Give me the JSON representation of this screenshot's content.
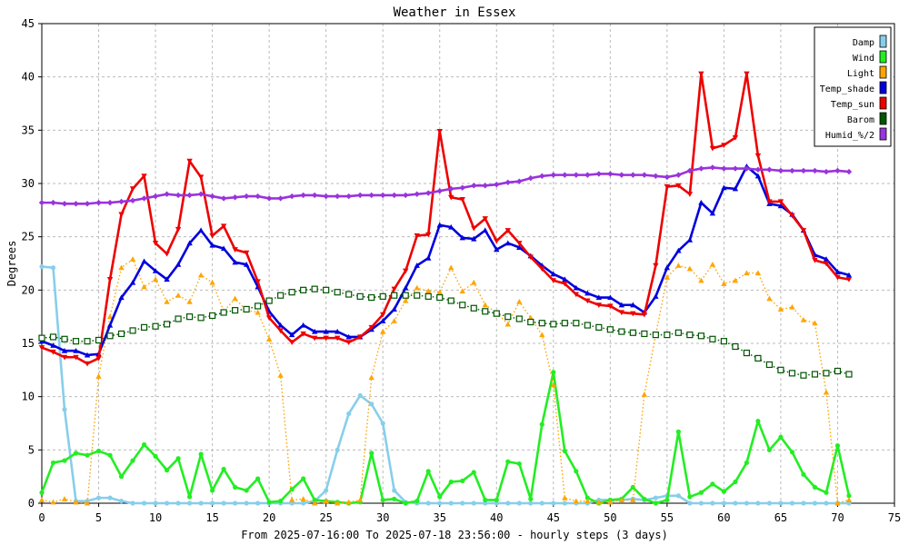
{
  "chart_data": {
    "type": "line",
    "title": "Weather in Essex",
    "xlabel": "From 2025-07-16:00 To 2025-07-18 23:56:00 - hourly steps (3 days)",
    "ylabel": "Degrees",
    "xlim": [
      0,
      75
    ],
    "ylim": [
      0,
      45
    ],
    "xticks": [
      0,
      5,
      10,
      15,
      20,
      25,
      30,
      35,
      40,
      45,
      50,
      55,
      60,
      65,
      70,
      75
    ],
    "yticks": [
      0,
      5,
      10,
      15,
      20,
      25,
      30,
      35,
      40,
      45
    ],
    "grid": true,
    "legend_position": "top-right",
    "x": [
      0,
      1,
      2,
      3,
      4,
      5,
      6,
      7,
      8,
      9,
      10,
      11,
      12,
      13,
      14,
      15,
      16,
      17,
      18,
      19,
      20,
      21,
      22,
      23,
      24,
      25,
      26,
      27,
      28,
      29,
      30,
      31,
      32,
      33,
      34,
      35,
      36,
      37,
      38,
      39,
      40,
      41,
      42,
      43,
      44,
      45,
      46,
      47,
      48,
      49,
      50,
      51,
      52,
      53,
      54,
      55,
      56,
      57,
      58,
      59,
      60,
      61,
      62,
      63,
      64,
      65,
      66,
      67,
      68,
      69,
      70,
      71
    ],
    "series": [
      {
        "name": "Damp",
        "color": "#87ceeb",
        "marker": "circle",
        "style": "solid",
        "values": [
          22.2,
          22.1,
          8.8,
          0.2,
          0.2,
          0.5,
          0.5,
          0.2,
          0,
          0,
          0,
          0,
          0,
          0,
          0,
          0,
          0,
          0,
          0,
          0,
          0,
          0,
          0,
          0,
          0.2,
          1.2,
          5,
          8.4,
          10.1,
          9.3,
          7.5,
          1.2,
          0.1,
          0,
          0,
          0,
          0,
          0,
          0,
          0,
          0,
          0,
          0,
          0,
          0,
          0,
          0,
          0,
          0,
          0.3,
          0.3,
          0.3,
          0.4,
          0.3,
          0.5,
          0.7,
          0.7,
          0,
          0,
          0,
          0,
          0,
          0,
          0,
          0,
          0,
          0,
          0,
          0,
          0,
          0,
          0
        ]
      },
      {
        "name": "Wind",
        "color": "#22ee22",
        "marker": "circle",
        "style": "solid",
        "values": [
          1,
          3.8,
          4,
          4.7,
          4.5,
          4.9,
          4.5,
          2.5,
          4,
          5.5,
          4.4,
          3.1,
          4.2,
          0.6,
          4.6,
          1.2,
          3.2,
          1.5,
          1.2,
          2.3,
          0.1,
          0.2,
          1.3,
          2.3,
          0.3,
          0.2,
          0.1,
          0,
          0.1,
          4.7,
          0.3,
          0.4,
          0,
          0.2,
          3,
          0.6,
          2,
          2.1,
          2.9,
          0.3,
          0.3,
          3.9,
          3.7,
          0.4,
          7.4,
          12.3,
          4.9,
          3,
          0.5,
          0,
          0.3,
          0.4,
          1.5,
          0.4,
          0,
          0.3,
          6.7,
          0.6,
          1,
          1.8,
          1.1,
          2,
          3.8,
          7.7,
          5,
          6.2,
          4.8,
          2.7,
          1.5,
          1,
          5.4,
          0.7
        ]
      },
      {
        "name": "Light",
        "color": "#ffa500",
        "marker": "triangle",
        "style": "dotted",
        "values": [
          0.3,
          0.1,
          0.4,
          0.1,
          0,
          11.9,
          17.5,
          22.1,
          22.9,
          20.3,
          21,
          18.9,
          19.5,
          18.9,
          21.4,
          20.7,
          18,
          19.2,
          18.1,
          17.9,
          15.4,
          12,
          0.3,
          0.4,
          0,
          0.2,
          0,
          0.1,
          0.3,
          11.8,
          16.1,
          17.1,
          19,
          20.2,
          19.9,
          19.8,
          22.1,
          19.9,
          20.7,
          18.6,
          17.9,
          16.8,
          18.9,
          17.4,
          15.8,
          11.1,
          0.5,
          0.2,
          0.2,
          0.1,
          0.1,
          0.3,
          0.3,
          10.2,
          15.8,
          21.2,
          22.3,
          22,
          20.9,
          22.4,
          20.6,
          20.9,
          21.6,
          21.6,
          19.2,
          18.2,
          18.4,
          17.2,
          16.9,
          10.4,
          0,
          0.3
        ]
      },
      {
        "name": "Temp_shade",
        "color": "#0000dd",
        "marker": "up-triangle",
        "style": "solid",
        "values": [
          15.2,
          14.8,
          14.3,
          14.3,
          13.9,
          14,
          16.7,
          19.3,
          20.7,
          22.7,
          21.8,
          21,
          22.4,
          24.4,
          25.6,
          24.2,
          23.9,
          22.6,
          22.4,
          20.3,
          18,
          16.7,
          15.8,
          16.7,
          16.1,
          16.1,
          16.1,
          15.6,
          15.6,
          16.3,
          17.1,
          18.2,
          20.2,
          22.3,
          23,
          26.1,
          25.9,
          24.9,
          24.8,
          25.6,
          23.8,
          24.4,
          24,
          23.2,
          22.3,
          21.5,
          21,
          20.2,
          19.7,
          19.3,
          19.3,
          18.6,
          18.6,
          17.9,
          19.4,
          22.1,
          23.7,
          24.7,
          28.2,
          27.2,
          29.6,
          29.5,
          31.6,
          30.7,
          28.1,
          27.9,
          27.1,
          25.6,
          23.3,
          22.9,
          21.7,
          21.4
        ]
      },
      {
        "name": "Temp_sun",
        "color": "#ee0000",
        "marker": "down-triangle",
        "style": "solid",
        "values": [
          14.6,
          14.2,
          13.7,
          13.7,
          13.1,
          13.6,
          21,
          27.1,
          29.5,
          30.7,
          24.4,
          23.4,
          25.7,
          32.1,
          30.6,
          25.1,
          26,
          23.8,
          23.5,
          20.8,
          17.4,
          16.2,
          15.1,
          15.9,
          15.5,
          15.5,
          15.5,
          15.1,
          15.6,
          16.5,
          17.7,
          20.1,
          21.8,
          25.1,
          25.2,
          34.9,
          28.7,
          28.5,
          25.8,
          26.7,
          24.6,
          25.6,
          24.4,
          23.1,
          22,
          20.9,
          20.6,
          19.6,
          19,
          18.6,
          18.5,
          17.9,
          17.8,
          17.7,
          22.3,
          29.7,
          29.8,
          29,
          40.3,
          33.3,
          33.6,
          34.3,
          40.3,
          32.6,
          28.3,
          28.3,
          27,
          25.6,
          22.8,
          22.5,
          21.2,
          21
        ]
      },
      {
        "name": "Barom",
        "color": "#005500",
        "marker": "square",
        "style": "dotted",
        "values": [
          15.5,
          15.6,
          15.4,
          15.2,
          15.2,
          15.3,
          15.7,
          15.9,
          16.2,
          16.5,
          16.6,
          16.8,
          17.3,
          17.5,
          17.4,
          17.6,
          17.9,
          18.1,
          18.2,
          18.5,
          19,
          19.5,
          19.8,
          20,
          20.1,
          20,
          19.8,
          19.6,
          19.4,
          19.3,
          19.4,
          19.5,
          19.5,
          19.5,
          19.4,
          19.3,
          19,
          18.6,
          18.3,
          18,
          17.8,
          17.5,
          17.3,
          17,
          16.9,
          16.8,
          16.9,
          16.9,
          16.7,
          16.5,
          16.3,
          16.1,
          16,
          15.9,
          15.8,
          15.8,
          16,
          15.8,
          15.7,
          15.4,
          15.2,
          14.7,
          14.1,
          13.6,
          13,
          12.5,
          12.2,
          12,
          12.1,
          12.2,
          12.4,
          12.1
        ]
      },
      {
        "name": "Humid_%/2",
        "color": "#9933dd",
        "marker": "diamond",
        "style": "solid",
        "values": [
          28.2,
          28.2,
          28.1,
          28.1,
          28.1,
          28.2,
          28.2,
          28.3,
          28.4,
          28.6,
          28.8,
          29,
          28.9,
          28.9,
          29,
          28.8,
          28.6,
          28.7,
          28.8,
          28.8,
          28.6,
          28.6,
          28.8,
          28.9,
          28.9,
          28.8,
          28.8,
          28.8,
          28.9,
          28.9,
          28.9,
          28.9,
          28.9,
          29,
          29.1,
          29.3,
          29.5,
          29.6,
          29.8,
          29.8,
          29.9,
          30.1,
          30.2,
          30.5,
          30.7,
          30.8,
          30.8,
          30.8,
          30.8,
          30.9,
          30.9,
          30.8,
          30.8,
          30.8,
          30.7,
          30.6,
          30.8,
          31.2,
          31.4,
          31.5,
          31.4,
          31.4,
          31.4,
          31.3,
          31.3,
          31.2,
          31.2,
          31.2,
          31.2,
          31.1,
          31.2,
          31.1
        ]
      }
    ]
  }
}
